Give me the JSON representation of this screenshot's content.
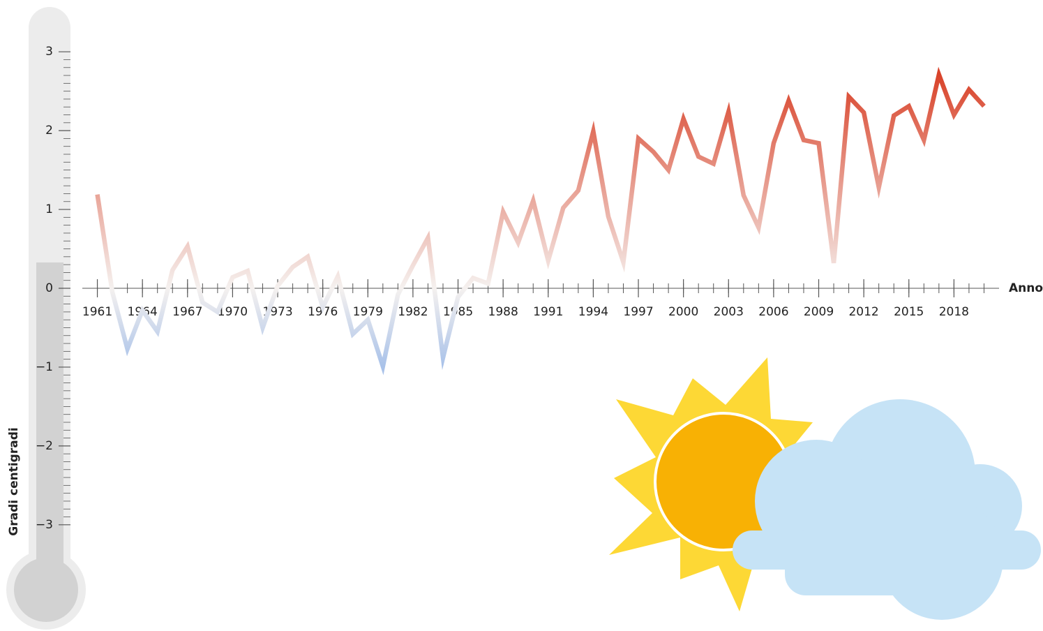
{
  "chart_data": {
    "type": "line",
    "y_label": "Gradi centigradi",
    "x_label": "Anno",
    "x": [
      1961,
      1962,
      1963,
      1964,
      1965,
      1966,
      1967,
      1968,
      1969,
      1970,
      1971,
      1972,
      1973,
      1974,
      1975,
      1976,
      1977,
      1978,
      1979,
      1980,
      1981,
      1982,
      1983,
      1984,
      1985,
      1986,
      1987,
      1988,
      1989,
      1990,
      1991,
      1992,
      1993,
      1994,
      1995,
      1996,
      1997,
      1998,
      1999,
      2000,
      2001,
      2002,
      2003,
      2004,
      2005,
      2006,
      2007,
      2008,
      2009,
      2010,
      2011,
      2012,
      2013,
      2014,
      2015,
      2016,
      2017,
      2018,
      2019,
      2020
    ],
    "values": [
      1.19,
      -0.05,
      -0.77,
      -0.28,
      -0.55,
      0.23,
      0.53,
      -0.18,
      -0.3,
      0.14,
      0.22,
      -0.5,
      0.03,
      0.27,
      0.4,
      -0.24,
      0.15,
      -0.58,
      -0.4,
      -0.99,
      -0.08,
      0.29,
      0.64,
      -0.88,
      -0.11,
      0.13,
      0.06,
      0.97,
      0.58,
      1.11,
      0.35,
      1.02,
      1.24,
      1.99,
      0.91,
      0.33,
      1.9,
      1.73,
      1.5,
      2.15,
      1.67,
      1.58,
      2.24,
      1.18,
      0.77,
      1.84,
      2.38,
      1.88,
      1.84,
      0.32,
      2.43,
      2.23,
      1.28,
      2.19,
      2.31,
      1.88,
      2.71,
      2.2,
      2.52,
      2.31
    ],
    "colors": {
      "low": "#a9c2e9",
      "mid": "#f5f1ef",
      "high": "#d9432a"
    },
    "xlim": [
      1960,
      2021
    ],
    "xticks": [
      1961,
      1964,
      1967,
      1970,
      1973,
      1976,
      1979,
      1982,
      1985,
      1988,
      1991,
      1994,
      1997,
      2000,
      2003,
      2006,
      2009,
      2012,
      2015,
      2018
    ],
    "ylim": [
      -3.4,
      3.4
    ],
    "yticks": [
      {
        "value": -3,
        "label": "−3"
      },
      {
        "value": -2,
        "label": "−2"
      },
      {
        "value": -1,
        "label": "−1"
      },
      0,
      1,
      2,
      3
    ]
  }
}
